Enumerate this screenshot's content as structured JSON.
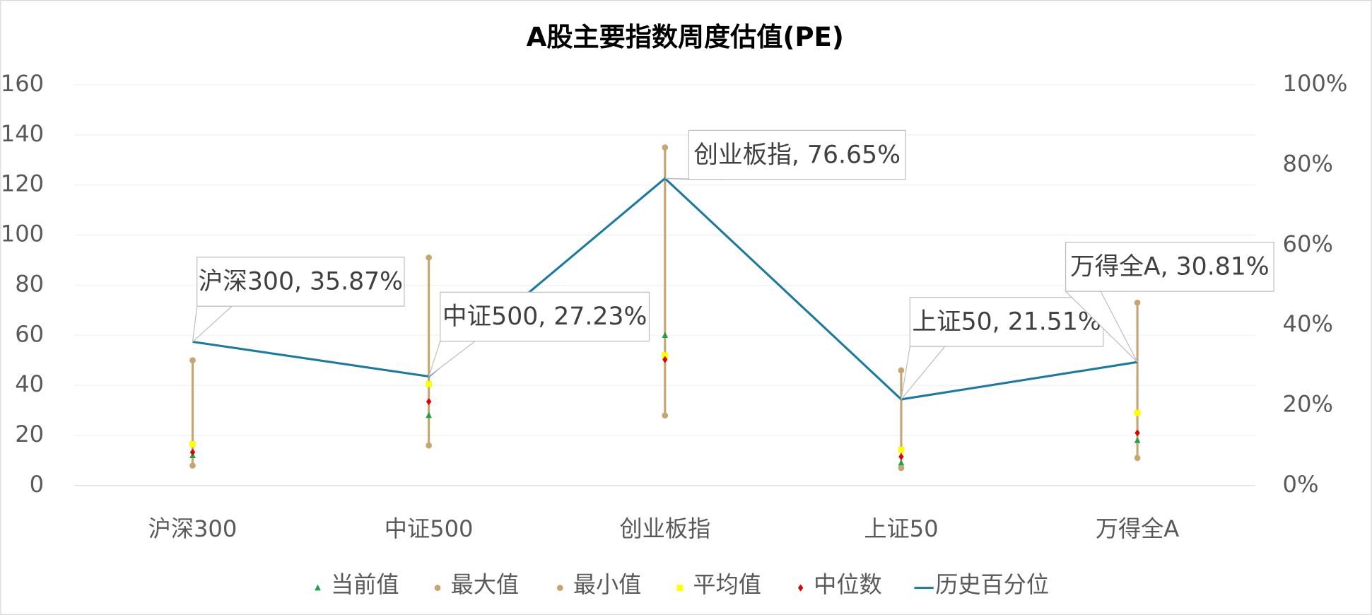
{
  "chart_data": {
    "type": "line",
    "title": "A股主要指数周度估值(PE)",
    "categories": [
      "沪深300",
      "中证500",
      "创业板指",
      "上证50",
      "万得全A"
    ],
    "ylim": [
      0,
      160
    ],
    "yticks": [
      0,
      20,
      40,
      60,
      80,
      100,
      120,
      140,
      160
    ],
    "y2lim": [
      0,
      100
    ],
    "y2ticks": [
      {
        "value": 0,
        "label": "0%"
      },
      {
        "value": 20,
        "label": "20%"
      },
      {
        "value": 40,
        "label": "40%"
      },
      {
        "value": 60,
        "label": "60%"
      },
      {
        "value": 80,
        "label": "80%"
      },
      {
        "value": 100,
        "label": "100%"
      }
    ],
    "grid": true,
    "legend": "bottom",
    "hi_lo_lines": true,
    "series": [
      {
        "name": "当前值",
        "color": "#1aa34a",
        "marker": "triangle",
        "values": [
          12,
          28,
          60,
          9,
          18
        ]
      },
      {
        "name": "最大值",
        "color": "#c8a46e",
        "marker": "circle",
        "values": [
          50,
          91,
          135,
          46,
          73
        ]
      },
      {
        "name": "最小值",
        "color": "#c8a46e",
        "marker": "circle",
        "values": [
          8,
          16,
          28,
          7,
          11
        ]
      },
      {
        "name": "平均值",
        "color": "#ffff00",
        "marker": "square",
        "values": [
          16.5,
          40.5,
          52,
          14.3,
          29
        ]
      },
      {
        "name": "中位数",
        "color": "#e00000",
        "marker": "diamond",
        "values": [
          13.3,
          33.5,
          50.3,
          11.5,
          21
        ]
      },
      {
        "name": "历史百分位",
        "color": "#1a7aa0",
        "marker": null,
        "axis": "y2",
        "values": [
          35.87,
          27.23,
          76.65,
          21.51,
          30.81
        ],
        "value_labels": [
          "沪深300, 35.87%",
          "中证500, 27.23%",
          "创业板指, 76.65%",
          "上证50, 21.51%",
          "万得全A, 30.81%"
        ]
      }
    ]
  }
}
